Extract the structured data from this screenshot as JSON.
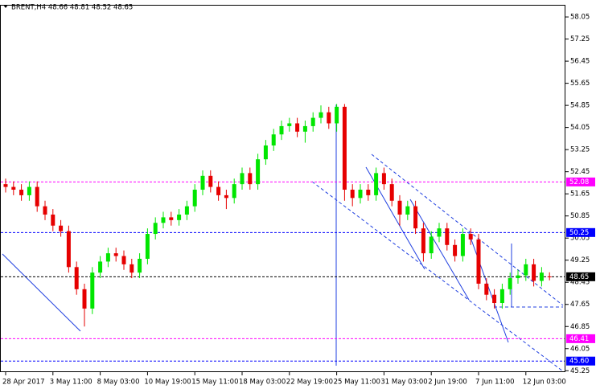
{
  "chart_data": {
    "type": "candlestick",
    "title": "BRENT,H4  48.66 48.81 48.52 48.65",
    "categories": [
      "28 Apr 2017",
      null,
      null,
      null,
      null,
      null,
      "3 May 11:00",
      null,
      null,
      null,
      null,
      null,
      "8 May 03:00",
      null,
      null,
      null,
      null,
      null,
      "10 May 19:00",
      null,
      null,
      null,
      null,
      null,
      "15 May 11:00",
      null,
      null,
      null,
      null,
      null,
      "18 May 03:00",
      null,
      null,
      null,
      null,
      null,
      "22 May 19:00",
      null,
      null,
      null,
      null,
      null,
      "25 May 11:00",
      null,
      null,
      null,
      null,
      null,
      "31 May 03:00",
      null,
      null,
      null,
      null,
      null,
      "2 Jun 19:00",
      null,
      null,
      null,
      null,
      null,
      "7 Jun 11:00",
      null,
      null,
      null,
      null,
      null,
      "12 Jun 03:00",
      null,
      null,
      null
    ],
    "open": [
      52.0,
      51.9,
      51.8,
      51.6,
      51.9,
      51.2,
      50.9,
      50.5,
      50.3,
      49.0,
      48.2,
      47.5,
      48.8,
      49.2,
      49.5,
      49.4,
      49.1,
      48.8,
      49.3,
      50.2,
      50.6,
      50.8,
      50.7,
      50.9,
      51.2,
      51.8,
      52.3,
      51.9,
      51.6,
      51.5,
      52.0,
      52.4,
      52.0,
      52.9,
      53.4,
      53.8,
      54.1,
      54.2,
      53.9,
      54.1,
      54.4,
      54.6,
      54.2,
      54.8,
      51.8,
      51.5,
      51.8,
      51.6,
      52.4,
      52.0,
      51.4,
      50.9,
      51.2,
      50.4,
      49.5,
      50.1,
      50.4,
      49.8,
      49.4,
      50.2,
      50.0,
      48.4,
      48.0,
      47.7,
      48.2,
      48.6,
      48.7,
      49.1,
      48.5,
      48.66
    ],
    "high": [
      52.2,
      52.1,
      52.0,
      52.1,
      52.1,
      51.4,
      51.1,
      50.7,
      50.5,
      49.2,
      48.4,
      49.0,
      49.4,
      49.7,
      49.7,
      49.6,
      49.3,
      49.5,
      50.4,
      50.8,
      51.0,
      51.0,
      51.1,
      51.4,
      52.0,
      52.5,
      52.5,
      52.1,
      51.8,
      52.2,
      52.6,
      52.6,
      53.1,
      53.6,
      54.0,
      54.3,
      54.4,
      54.4,
      54.3,
      54.6,
      54.85,
      54.8,
      54.9,
      54.9,
      52.0,
      52.0,
      52.0,
      52.6,
      52.6,
      52.2,
      51.6,
      51.4,
      51.4,
      50.6,
      50.3,
      50.6,
      50.6,
      50.0,
      50.4,
      50.4,
      50.2,
      48.6,
      48.2,
      48.4,
      48.8,
      48.9,
      49.3,
      49.3,
      49.0,
      48.81
    ],
    "low": [
      51.7,
      51.6,
      51.4,
      51.4,
      51.0,
      50.7,
      50.3,
      50.1,
      48.8,
      48.0,
      46.85,
      47.3,
      48.6,
      49.0,
      49.2,
      48.9,
      48.6,
      48.6,
      49.1,
      50.0,
      50.4,
      50.5,
      50.5,
      50.7,
      51.0,
      51.6,
      51.7,
      51.4,
      51.1,
      51.3,
      51.8,
      51.8,
      51.8,
      52.7,
      53.2,
      53.6,
      53.9,
      53.7,
      53.5,
      53.9,
      54.2,
      54.0,
      53.9,
      51.4,
      51.2,
      51.3,
      51.4,
      51.4,
      51.8,
      51.2,
      50.5,
      50.7,
      50.2,
      49.2,
      49.3,
      49.9,
      49.6,
      49.2,
      49.2,
      49.8,
      48.2,
      47.8,
      47.5,
      47.5,
      48.0,
      48.4,
      48.5,
      48.3,
      48.3,
      48.52
    ],
    "close": [
      51.9,
      51.8,
      51.6,
      51.9,
      51.2,
      50.9,
      50.5,
      50.3,
      49.0,
      48.2,
      47.5,
      48.8,
      49.2,
      49.5,
      49.4,
      49.1,
      48.8,
      49.3,
      50.2,
      50.6,
      50.8,
      50.7,
      50.9,
      51.2,
      51.8,
      52.3,
      51.9,
      51.6,
      51.5,
      52.0,
      52.4,
      52.0,
      52.9,
      53.4,
      53.8,
      54.1,
      54.2,
      53.9,
      54.1,
      54.4,
      54.6,
      54.2,
      54.8,
      51.8,
      51.5,
      51.8,
      51.6,
      52.4,
      52.0,
      51.4,
      50.9,
      51.2,
      50.4,
      49.5,
      50.1,
      50.4,
      49.8,
      49.4,
      50.2,
      50.0,
      48.4,
      48.0,
      47.7,
      48.2,
      48.6,
      48.7,
      49.1,
      48.5,
      48.8,
      48.65
    ],
    "up_color": "#00e600",
    "down_color": "#e60000",
    "ylim": [
      45.2,
      58.43
    ],
    "yticks": [
      58.05,
      57.25,
      56.45,
      55.65,
      54.85,
      54.05,
      53.25,
      52.45,
      51.65,
      50.85,
      50.05,
      49.25,
      48.45,
      47.65,
      46.85,
      46.05,
      45.25
    ],
    "levels": [
      {
        "value": 52.08,
        "color": "#ff00ff"
      },
      {
        "value": 50.25,
        "color": "#0000ff"
      },
      {
        "value": 48.65,
        "color": "#000000"
      },
      {
        "value": 46.41,
        "color": "#ff00ff"
      },
      {
        "value": {
          "value": 45.6,
          "label": "45.60"
        },
        "color": "#0000ff"
      }
    ]
  }
}
